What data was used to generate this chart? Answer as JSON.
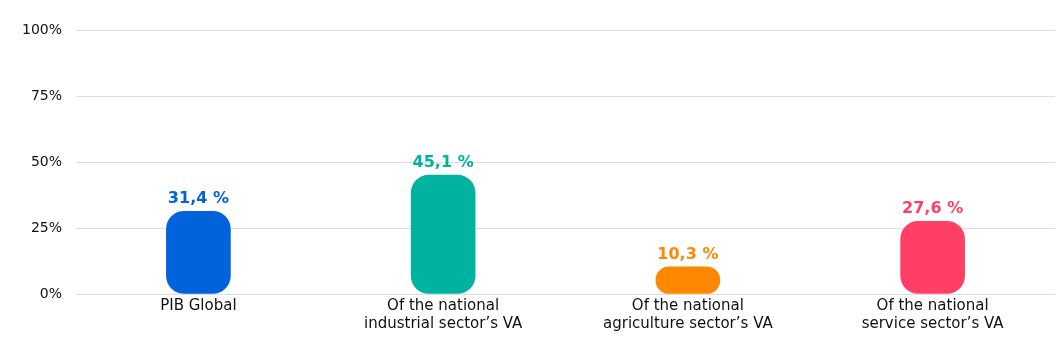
{
  "chart_data": {
    "type": "bar",
    "categories": [
      "PIB Global",
      "Of the national\nindustrial sector’s VA",
      "Of the national\nagriculture sector’s VA",
      "Of the national\nservice sector’s VA"
    ],
    "values": [
      31.4,
      45.1,
      10.3,
      27.6
    ],
    "colors": [
      "#0063db",
      "#00b3a1",
      "#ff8800",
      "#ff3f66"
    ],
    "value_labels": [
      "31,4 %",
      "45,1 %",
      "10,3 %",
      "27,6 %"
    ],
    "ylim": [
      0,
      100
    ],
    "yticks": [
      {
        "value": 0,
        "label": "0%"
      },
      {
        "value": 25,
        "label": "25%"
      },
      {
        "value": 50,
        "label": "50%"
      },
      {
        "value": 75,
        "label": "75%"
      },
      {
        "value": 100,
        "label": "100%"
      }
    ],
    "grid": "y"
  }
}
